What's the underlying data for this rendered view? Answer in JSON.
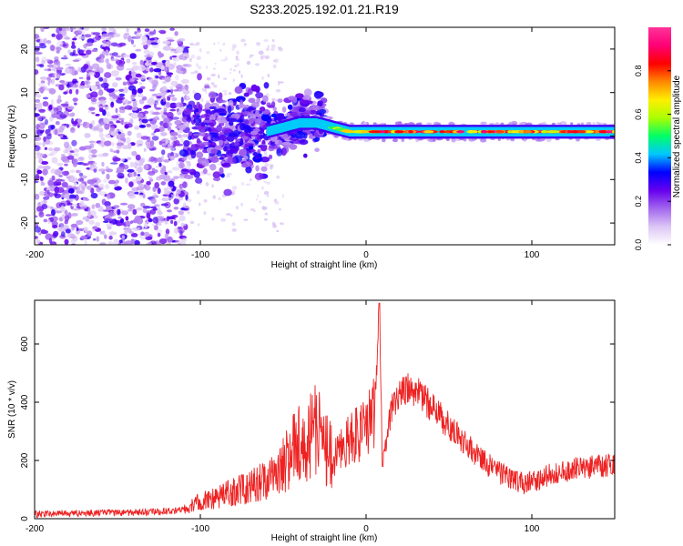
{
  "title": "S233.2025.192.01.21.R19",
  "chart_data": [
    {
      "type": "heatmap",
      "xlabel": "Height of straight line (km)",
      "ylabel": "Frequency (Hz)",
      "xlim": [
        -200,
        150
      ],
      "ylim": [
        -25,
        25
      ],
      "x_ticks": [
        -200,
        -100,
        0,
        100
      ],
      "y_ticks": [
        -20,
        -10,
        0,
        10,
        20
      ],
      "colorbar": {
        "label": "Normalized spectral amplitude",
        "range": [
          0,
          1
        ],
        "ticks": [
          "0.0",
          "0.2",
          "0.4",
          "0.6",
          "0.8"
        ],
        "colormap": [
          "#ffffff",
          "#dcc6f5",
          "#a366ee",
          "#6600ee",
          "#0000ff",
          "#00c8ff",
          "#00ff66",
          "#aaff00",
          "#ffee00",
          "#ff8800",
          "#ff0000",
          "#ff0077",
          "#ff3399"
        ]
      },
      "ridge": {
        "x": [
          -110,
          -100,
          -90,
          -80,
          -70,
          -60,
          -50,
          -40,
          -30,
          -20,
          -10,
          0,
          10,
          20,
          40,
          60,
          80,
          100,
          120,
          150
        ],
        "freq": [
          0,
          1,
          1,
          0,
          1,
          1,
          2,
          3,
          3,
          2,
          1,
          1,
          1,
          1,
          1,
          1,
          1,
          1,
          1,
          1
        ]
      }
    },
    {
      "type": "line",
      "xlabel": "Height of straight line (km)",
      "ylabel": "SNR (10 * v/v)",
      "xlim": [
        -200,
        150
      ],
      "ylim": [
        0,
        750
      ],
      "x_ticks": [
        -200,
        -100,
        0,
        100
      ],
      "y_ticks": [
        0,
        200,
        400,
        600
      ],
      "line_color": "#ee2222",
      "series": [
        {
          "x": [
            -200,
            -180,
            -160,
            -140,
            -120,
            -110,
            -100,
            -90,
            -80,
            -70,
            -60,
            -50,
            -40,
            -30,
            -20,
            -10,
            0,
            5,
            8,
            10,
            15,
            20,
            25,
            30,
            40,
            50,
            60,
            70,
            80,
            90,
            95,
            100,
            110,
            120,
            130,
            140,
            150
          ],
          "y": [
            15,
            18,
            20,
            22,
            25,
            30,
            60,
            75,
            90,
            110,
            140,
            190,
            260,
            300,
            200,
            270,
            320,
            370,
            740,
            180,
            370,
            430,
            450,
            440,
            380,
            320,
            260,
            200,
            160,
            130,
            120,
            125,
            150,
            165,
            175,
            180,
            190
          ]
        }
      ]
    }
  ]
}
